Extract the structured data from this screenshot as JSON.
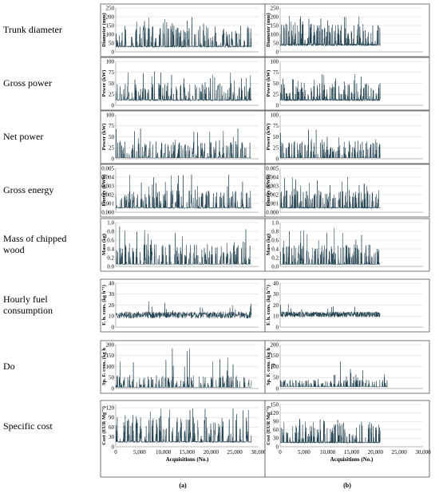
{
  "row_labels": [
    [
      "Trunk diameter"
    ],
    [
      "Gross power"
    ],
    [
      "Net power"
    ],
    [
      "Gross energy"
    ],
    [
      "Mass of chipped",
      "wood"
    ],
    [
      "Hourly fuel",
      "consumption"
    ],
    [
      "Do"
    ],
    [
      "Specific cost"
    ]
  ],
  "columns": [
    {
      "label": "(a)"
    },
    {
      "label": "(b)"
    }
  ],
  "xaxis": {
    "title": "Acquisitions (No.)",
    "ticks": [
      "0",
      "5,000",
      "10,000",
      "15,000",
      "20,000",
      "25,000",
      "30,000"
    ],
    "xlim": [
      0,
      30000
    ]
  },
  "colors": {
    "series": "#1a3a4a",
    "frame": "#555555",
    "grid": "#d6d6d6"
  },
  "chart_data": [
    {
      "type": "line",
      "row": 0,
      "column": "a",
      "ylabel": "Diameter (mm)",
      "yticks": [
        "0",
        "50",
        "100",
        "150",
        "200",
        "250"
      ],
      "ylim": [
        0,
        250
      ],
      "x_range": [
        0,
        28500
      ],
      "series": [
        {
          "y_range": [
            10,
            205
          ],
          "typical_peak": 150,
          "typical_base": 30
        }
      ]
    },
    {
      "type": "line",
      "row": 0,
      "column": "b",
      "ylabel": "Diameter (mm)",
      "yticks": [
        "0",
        "50",
        "100",
        "150",
        "200",
        "250"
      ],
      "ylim": [
        0,
        250
      ],
      "x_range": [
        0,
        21000
      ],
      "series": [
        {
          "y_range": [
            10,
            205
          ],
          "typical_peak": 160,
          "typical_base": 40
        }
      ]
    },
    {
      "type": "line",
      "row": 1,
      "column": "a",
      "ylabel": "Power (kW)",
      "yticks": [
        "0",
        "25",
        "50",
        "75",
        "100"
      ],
      "ylim": [
        0,
        100
      ],
      "x_range": [
        0,
        28500
      ],
      "series": [
        {
          "y_range": [
            5,
            78
          ],
          "typical_peak": 50,
          "typical_base": 12
        }
      ]
    },
    {
      "type": "line",
      "row": 1,
      "column": "b",
      "ylabel": "Power (kW)",
      "yticks": [
        "0",
        "25",
        "50",
        "75",
        "100"
      ],
      "ylim": [
        0,
        100
      ],
      "x_range": [
        0,
        21000
      ],
      "series": [
        {
          "y_range": [
            5,
            75
          ],
          "typical_peak": 50,
          "typical_base": 12
        }
      ]
    },
    {
      "type": "line",
      "row": 2,
      "column": "a",
      "ylabel": "Power (kW)",
      "yticks": [
        "0",
        "25",
        "50",
        "75",
        "100"
      ],
      "ylim": [
        0,
        100
      ],
      "x_range": [
        0,
        28500
      ],
      "series": [
        {
          "y_range": [
            0,
            70
          ],
          "typical_peak": 40,
          "typical_base": 2
        }
      ]
    },
    {
      "type": "line",
      "row": 2,
      "column": "b",
      "ylabel": "Power (kW)",
      "yticks": [
        "0",
        "25",
        "50",
        "75",
        "100"
      ],
      "ylim": [
        0,
        100
      ],
      "x_range": [
        0,
        21000
      ],
      "series": [
        {
          "y_range": [
            0,
            68
          ],
          "typical_peak": 40,
          "typical_base": 2
        }
      ]
    },
    {
      "type": "line",
      "row": 3,
      "column": "a",
      "ylabel": "Energy (kWh)",
      "yticks": [
        "0.000",
        "0.001",
        "0.002",
        "0.003",
        "0.004",
        "0.005"
      ],
      "ylim": [
        0,
        0.005
      ],
      "x_range": [
        0,
        28500
      ],
      "series": [
        {
          "y_range": [
            0.0001,
            0.0043
          ],
          "typical_peak": 0.0025,
          "typical_base": 0.0005
        }
      ]
    },
    {
      "type": "line",
      "row": 3,
      "column": "b",
      "ylabel": "Energy (kWh)",
      "yticks": [
        "0.000",
        "0.001",
        "0.002",
        "0.003",
        "0.004",
        "0.005"
      ],
      "ylim": [
        0,
        0.005
      ],
      "x_range": [
        0,
        21000
      ],
      "series": [
        {
          "y_range": [
            0.0001,
            0.0041
          ],
          "typical_peak": 0.0025,
          "typical_base": 0.0005
        }
      ]
    },
    {
      "type": "line",
      "row": 4,
      "column": "a",
      "ylabel": "Mass (kg)",
      "yticks": [
        "0.0",
        "0.2",
        "0.4",
        "0.6",
        "0.8",
        "1.0"
      ],
      "ylim": [
        0,
        1.0
      ],
      "x_range": [
        0,
        28500
      ],
      "series": [
        {
          "y_range": [
            0.0,
            0.95
          ],
          "typical_peak": 0.5,
          "typical_base": 0.05
        }
      ]
    },
    {
      "type": "line",
      "row": 4,
      "column": "b",
      "ylabel": "Mass (kg)",
      "yticks": [
        "0.0",
        "0.2",
        "0.4",
        "0.6",
        "0.8",
        "1.0"
      ],
      "ylim": [
        0,
        1.0
      ],
      "x_range": [
        0,
        21000
      ],
      "series": [
        {
          "y_range": [
            0.0,
            0.9
          ],
          "typical_peak": 0.5,
          "typical_base": 0.05
        }
      ]
    },
    {
      "type": "line",
      "row": 5,
      "column": "a",
      "ylabel": "F. h. cons. (kg h⁻¹)",
      "yticks": [
        "0",
        "10",
        "20",
        "30",
        "40"
      ],
      "ylim": [
        0,
        40
      ],
      "x_range": [
        0,
        28500
      ],
      "series": [
        {
          "y_range": [
            0,
            24
          ],
          "typical_peak": 14,
          "typical_base": 8
        }
      ]
    },
    {
      "type": "line",
      "row": 5,
      "column": "b",
      "ylabel": "F. h. cons. (kg h⁻¹)",
      "yticks": [
        "0",
        "10",
        "20",
        "30",
        "40"
      ],
      "ylim": [
        0,
        40
      ],
      "x_range": [
        0,
        21000
      ],
      "series": [
        {
          "y_range": [
            6,
            23
          ],
          "typical_peak": 14,
          "typical_base": 9
        }
      ]
    },
    {
      "type": "line",
      "row": 6,
      "column": "a",
      "ylabel": "Sp. F. cons. (kg h",
      "yticks": [
        "0",
        "50",
        "100",
        "150",
        "200"
      ],
      "ylim": [
        0,
        200
      ],
      "x_range": [
        0,
        28500
      ],
      "series": [
        {
          "y_range": [
            0,
            200
          ],
          "typical_peak": 60,
          "typical_base": 5
        }
      ]
    },
    {
      "type": "line",
      "row": 6,
      "column": "b",
      "ylabel": "Sp. F. cons. (kg h",
      "ylabel_extra": "⁻¹)",
      "yticks": [
        "0",
        "50",
        "100",
        "150",
        "200"
      ],
      "ylim": [
        0,
        200
      ],
      "x_range": [
        0,
        22500
      ],
      "series": [
        {
          "y_range": [
            0,
            130
          ],
          "typical_peak": 40,
          "typical_base": 8
        }
      ]
    },
    {
      "type": "line",
      "row": 7,
      "column": "a",
      "ylabel": "Cost (EUR Mg⁻¹)",
      "yticks": [
        "0",
        "30",
        "60",
        "90",
        "120"
      ],
      "ylim": [
        0,
        130
      ],
      "x_range": [
        0,
        28500
      ],
      "series": [
        {
          "y_range": [
            0,
            122
          ],
          "typical_peak": 90,
          "typical_base": 15
        }
      ]
    },
    {
      "type": "line",
      "row": 7,
      "column": "b",
      "ylabel": "Cost (EUR Mg⁻¹)",
      "yticks": [
        "0",
        "30",
        "60",
        "90",
        "120",
        "150"
      ],
      "ylim": [
        0,
        150
      ],
      "x_range": [
        0,
        21000
      ],
      "series": [
        {
          "y_range": [
            0,
            100
          ],
          "typical_peak": 80,
          "typical_base": 15
        }
      ]
    }
  ]
}
